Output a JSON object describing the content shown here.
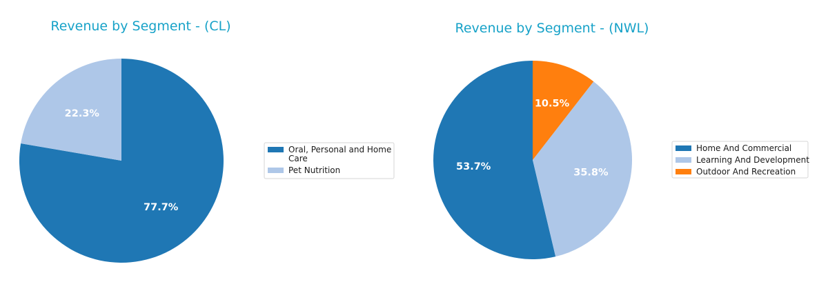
{
  "chart_data": [
    {
      "type": "pie",
      "title": "Revenue by Segment - (CL)",
      "slices": [
        {
          "name": "Oral, Personal and Home Care",
          "legend_lines": [
            "Oral, Personal and Home",
            "Care"
          ],
          "value": 77.7,
          "label": "77.7%",
          "color": "#1f77b4"
        },
        {
          "name": "Pet Nutrition",
          "legend_lines": [
            "Pet Nutrition"
          ],
          "value": 22.3,
          "label": "22.3%",
          "color": "#aec7e8"
        }
      ],
      "start_angle_deg": 90,
      "direction": "clockwise",
      "legend_placement": "right"
    },
    {
      "type": "pie",
      "title": "Revenue by Segment - (NWL)",
      "slices": [
        {
          "name": "Home And Commercial",
          "legend_lines": [
            "Home And Commercial"
          ],
          "value": 53.7,
          "label": "53.7%",
          "color": "#1f77b4"
        },
        {
          "name": "Learning And Development",
          "legend_lines": [
            "Learning And Development"
          ],
          "value": 35.8,
          "label": "35.8%",
          "color": "#aec7e8"
        },
        {
          "name": "Outdoor And Recreation",
          "legend_lines": [
            "Outdoor And Recreation"
          ],
          "value": 10.5,
          "label": "10.5%",
          "color": "#ff7f0e"
        }
      ],
      "start_angle_deg": 90,
      "direction": "counterclockwise",
      "legend_placement": "right"
    }
  ]
}
